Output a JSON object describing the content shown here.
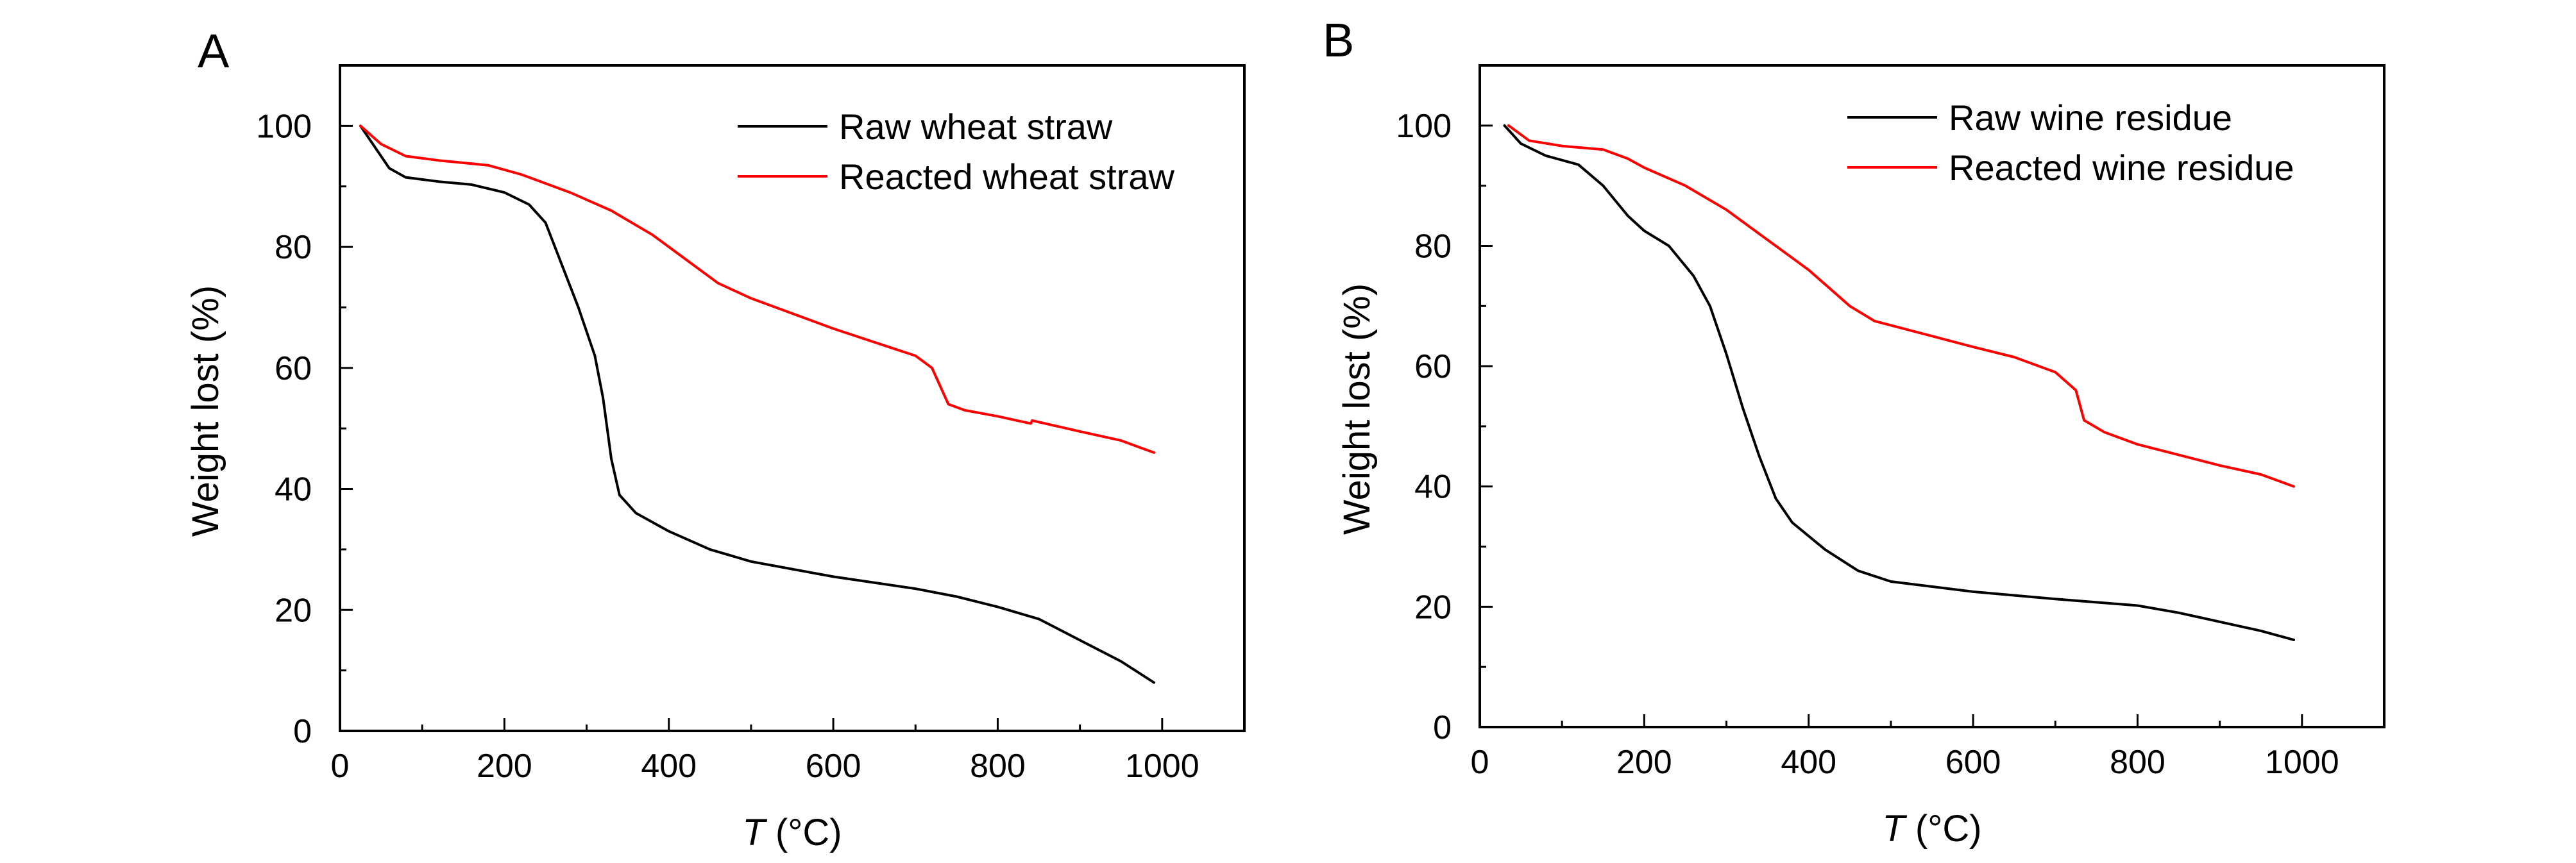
{
  "chart_data": [
    {
      "type": "line",
      "panel_label": "A",
      "title": "",
      "xlabel_italic": "T",
      "xlabel_rest": " (°C)",
      "ylabel": "Weight lost (%)",
      "xlim": [
        0,
        1100
      ],
      "ylim": [
        0,
        110
      ],
      "xticks": [
        0,
        200,
        400,
        600,
        800,
        1000
      ],
      "xminor": [
        100,
        300,
        500,
        700,
        900
      ],
      "yticks": [
        0,
        20,
        40,
        60,
        80,
        100
      ],
      "yminor": [
        10,
        30,
        50,
        70,
        90
      ],
      "grid": false,
      "legend_position": "top-right",
      "series": [
        {
          "name": "Raw wheat straw",
          "color": "#000000",
          "x": [
            25,
            40,
            60,
            80,
            120,
            160,
            200,
            230,
            250,
            270,
            290,
            310,
            320,
            330,
            340,
            360,
            400,
            450,
            500,
            600,
            700,
            750,
            800,
            850,
            900,
            950,
            990
          ],
          "y": [
            100,
            97,
            93,
            91.5,
            90.8,
            90.3,
            89,
            87,
            84,
            77,
            70,
            62,
            55,
            45,
            39,
            36,
            33,
            30,
            28,
            25.5,
            23.5,
            22.2,
            20.5,
            18.5,
            15,
            11.5,
            8
          ]
        },
        {
          "name": "Reacted wheat straw",
          "color": "#ff0000",
          "x": [
            25,
            50,
            80,
            120,
            180,
            220,
            280,
            330,
            380,
            420,
            460,
            500,
            600,
            700,
            720,
            730,
            740,
            760,
            800,
            840,
            842,
            900,
            950,
            990
          ],
          "y": [
            100,
            97,
            95,
            94.3,
            93.5,
            92,
            89,
            86,
            82,
            78,
            74,
            71.5,
            66.5,
            62,
            60,
            57,
            54,
            53,
            52,
            50.8,
            51.3,
            49.5,
            48,
            46
          ]
        }
      ]
    },
    {
      "type": "line",
      "panel_label": "B",
      "title": "",
      "xlabel_italic": "T",
      "xlabel_rest": " (°C)",
      "ylabel": "Weight lost (%)",
      "xlim": [
        0,
        1100
      ],
      "ylim": [
        0,
        110
      ],
      "xticks": [
        0,
        200,
        400,
        600,
        800,
        1000
      ],
      "xminor": [
        100,
        300,
        500,
        700,
        900
      ],
      "yticks": [
        0,
        20,
        40,
        60,
        80,
        100
      ],
      "yminor": [
        10,
        30,
        50,
        70,
        90
      ],
      "grid": false,
      "legend_position": "top-right",
      "series": [
        {
          "name": "Raw wine residue",
          "color": "#000000",
          "x": [
            30,
            50,
            80,
            120,
            150,
            180,
            200,
            230,
            260,
            280,
            300,
            320,
            340,
            360,
            380,
            420,
            460,
            500,
            600,
            700,
            800,
            850,
            900,
            950,
            990
          ],
          "y": [
            100,
            97,
            95,
            93.5,
            90,
            85,
            82.5,
            80,
            75,
            70,
            62,
            53,
            45,
            38,
            34,
            29.5,
            26,
            24.2,
            22.5,
            21.3,
            20.2,
            19,
            17.5,
            16,
            14.5
          ]
        },
        {
          "name": "Reacted wine residue",
          "color": "#ff0000",
          "x": [
            35,
            60,
            100,
            150,
            180,
            200,
            250,
            300,
            350,
            400,
            450,
            480,
            550,
            600,
            650,
            700,
            725,
            735,
            760,
            800,
            900,
            950,
            990
          ],
          "y": [
            100,
            97.5,
            96.6,
            96,
            94.5,
            93,
            90,
            86,
            81,
            76,
            70,
            67.5,
            65,
            63.2,
            61.5,
            59,
            56,
            51,
            49,
            47,
            43.5,
            42,
            40
          ]
        }
      ]
    }
  ]
}
